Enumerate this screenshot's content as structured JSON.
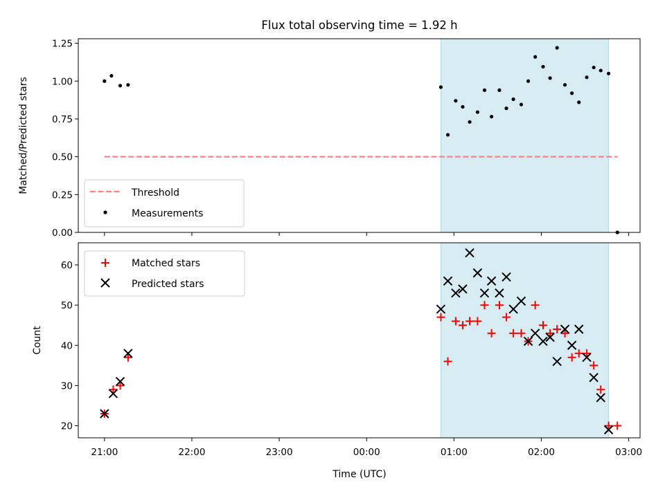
{
  "figure": {
    "title": "Flux total observing time = 1.92 h",
    "xlabel": "Time (UTC)"
  },
  "colors": {
    "shade": "#add8e6",
    "threshold": "#ff7f7f",
    "matched": "#ff0000",
    "predicted": "#000000",
    "measurement": "#000000"
  },
  "chart_data": [
    {
      "type": "scatter",
      "ylabel": "Matched/Predicted stars",
      "ylim": [
        0,
        1.28
      ],
      "yticks": [
        0.0,
        0.25,
        0.5,
        0.75,
        1.0,
        1.25
      ],
      "ytick_labels": [
        "0.00",
        "0.25",
        "0.50",
        "0.75",
        "1.00",
        "1.25"
      ],
      "xlim": [
        -0.3,
        6.13
      ],
      "xticks": [
        0,
        1,
        2,
        3,
        4,
        5,
        6
      ],
      "shaded_span": [
        3.85,
        5.77
      ],
      "threshold": {
        "name": "Threshold",
        "y": 0.5,
        "x": [
          0,
          5.87
        ]
      },
      "series": [
        {
          "name": "Measurements",
          "x": [
            0,
            0.08,
            0.18,
            0.27,
            3.85,
            3.93,
            4.02,
            4.1,
            4.18,
            4.27,
            4.35,
            4.43,
            4.52,
            4.6,
            4.68,
            4.77,
            4.85,
            4.93,
            5.02,
            5.1,
            5.18,
            5.27,
            5.35,
            5.43,
            5.52,
            5.6,
            5.68,
            5.77,
            5.87
          ],
          "y": [
            1.0,
            1.035,
            0.97,
            0.975,
            0.96,
            0.645,
            0.87,
            0.83,
            0.73,
            0.795,
            0.94,
            0.765,
            0.94,
            0.82,
            0.88,
            0.845,
            1.0,
            1.16,
            1.095,
            1.02,
            1.22,
            0.975,
            0.92,
            0.86,
            1.025,
            1.09,
            1.07,
            1.05,
            0.0
          ]
        }
      ],
      "legend": [
        "Threshold",
        "Measurements"
      ],
      "legend_loc": "lower-left"
    },
    {
      "type": "scatter",
      "ylabel": "Count",
      "ylim": [
        17,
        65.5
      ],
      "yticks": [
        20,
        30,
        40,
        50,
        60
      ],
      "ytick_labels": [
        "20",
        "30",
        "40",
        "50",
        "60"
      ],
      "xlim": [
        -0.3,
        6.13
      ],
      "xticks": [
        0,
        1,
        2,
        3,
        4,
        5,
        6
      ],
      "xtick_labels": [
        "21:00",
        "22:00",
        "23:00",
        "00:00",
        "01:00",
        "02:00",
        "03:00"
      ],
      "shaded_span": [
        3.85,
        5.77
      ],
      "series": [
        {
          "name": "Matched stars",
          "marker": "plus",
          "x": [
            0,
            0.1,
            0.18,
            0.27,
            3.85,
            3.93,
            4.02,
            4.1,
            4.18,
            4.27,
            4.35,
            4.43,
            4.52,
            4.6,
            4.68,
            4.77,
            4.85,
            4.93,
            5.02,
            5.1,
            5.18,
            5.27,
            5.35,
            5.43,
            5.52,
            5.6,
            5.68,
            5.77,
            5.87
          ],
          "y": [
            23,
            29,
            30,
            37,
            47,
            36,
            46,
            45,
            46,
            46,
            50,
            43,
            50,
            47,
            43,
            43,
            41,
            50,
            45,
            43,
            44,
            43,
            37,
            38,
            38,
            35,
            29,
            20,
            20
          ]
        },
        {
          "name": "Predicted stars",
          "marker": "x",
          "x": [
            0,
            0.1,
            0.18,
            0.27,
            3.85,
            3.93,
            4.02,
            4.1,
            4.18,
            4.27,
            4.35,
            4.43,
            4.52,
            4.6,
            4.68,
            4.77,
            4.85,
            4.93,
            5.02,
            5.1,
            5.18,
            5.27,
            5.35,
            5.43,
            5.52,
            5.6,
            5.68,
            5.77
          ],
          "y": [
            23,
            28,
            31,
            38,
            49,
            56,
            53,
            54,
            63,
            58,
            53,
            56,
            53,
            57,
            49,
            51,
            41,
            43,
            41,
            42,
            36,
            44,
            40,
            44,
            37,
            32,
            27,
            19
          ]
        }
      ],
      "legend": [
        "Matched stars",
        "Predicted stars"
      ],
      "legend_loc": "upper-left"
    }
  ]
}
